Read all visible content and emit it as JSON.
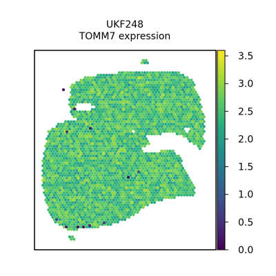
{
  "chart_data": {
    "type": "scatter",
    "title_line1": "UKF248",
    "title_line2": "TOMM7 expression",
    "colormap": "viridis",
    "colorbar": {
      "range": [
        0.0,
        3.6
      ],
      "ticks": [
        0.0,
        0.5,
        1.0,
        1.5,
        2.0,
        2.5,
        3.0,
        3.5
      ],
      "tick_labels": [
        "0.0",
        "0.5",
        "1.0",
        "1.5",
        "2.0",
        "2.5",
        "3.0",
        "3.5"
      ]
    },
    "typical_value_range": [
      1.7,
      3.3
    ],
    "low_value_spots": [
      {
        "x": 92,
        "y": 130,
        "value": 0.1
      },
      {
        "x": 108,
        "y": 158,
        "value": 0.3
      },
      {
        "x": 131,
        "y": 186,
        "value": 0.2
      },
      {
        "x": 97,
        "y": 191,
        "value": 0.5
      },
      {
        "x": 186,
        "y": 257,
        "value": 0.1
      },
      {
        "x": 96,
        "y": 329,
        "value": 0.3
      },
      {
        "x": 113,
        "y": 329,
        "value": 0.1
      },
      {
        "x": 121,
        "y": 329,
        "value": 0.2
      },
      {
        "x": 130,
        "y": 327,
        "value": 0.4
      },
      {
        "x": 151,
        "y": 323,
        "value": 0.6
      },
      {
        "x": 82,
        "y": 318,
        "value": 0.8
      },
      {
        "x": 201,
        "y": 249,
        "value": 0.9
      }
    ],
    "axes": {
      "xticks": false,
      "yticks": false,
      "frame": true
    },
    "grid": false,
    "legend": "none"
  }
}
